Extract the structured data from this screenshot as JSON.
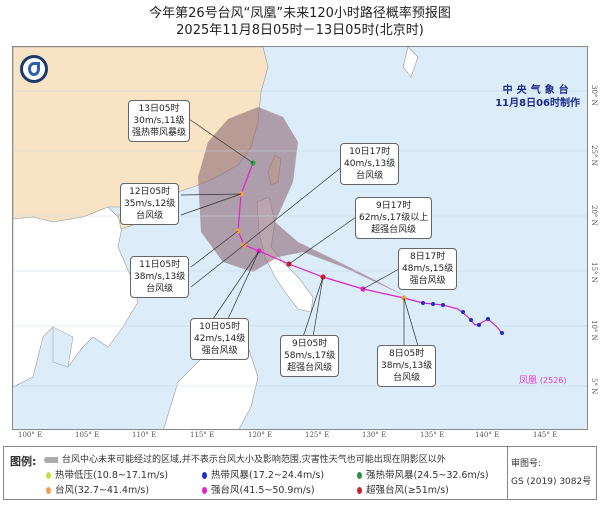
{
  "title": {
    "line1": "今年第26号台风“凤凰”未来120小时路径概率预报图",
    "line2": "2025年11月8日05时－13日05时(北京时)"
  },
  "agency": {
    "name": "中央气象台",
    "issued": "11月8日06时制作"
  },
  "typhoon_label": "凤凰",
  "typhoon_code": "(2526)",
  "lon_ticks": [
    "100° E",
    "105° E",
    "110° E",
    "115° E",
    "120° E",
    "125° E",
    "130° E",
    "135° E",
    "140° E",
    "145° E"
  ],
  "lat_ticks": [
    "30° N",
    "25° N",
    "20° N",
    "15° N",
    "10° N",
    "5° N"
  ],
  "forecast_points": [
    {
      "time": "13日05时",
      "wind": "30m/s,11级",
      "level": "强热带风暴级",
      "color": "#2e9e44"
    },
    {
      "time": "12日05时",
      "wind": "35m/s,12级",
      "level": "台风级",
      "color": "#f0a050"
    },
    {
      "time": "11日05时",
      "wind": "38m/s,13级",
      "level": "台风级",
      "color": "#f0a050"
    },
    {
      "time": "10日17时",
      "wind": "40m/s,13级",
      "level": "台风级",
      "color": "#f0a050"
    },
    {
      "time": "10日05时",
      "wind": "42m/s,14级",
      "level": "强台风级",
      "color": "#e020d0"
    },
    {
      "time": "9日17时",
      "wind": "62m/s,17级以上",
      "level": "超强台风级",
      "color": "#d02030"
    },
    {
      "time": "9日05时",
      "wind": "58m/s,17级",
      "level": "超强台风级",
      "color": "#d02030"
    },
    {
      "time": "8日17时",
      "wind": "48m/s,15级",
      "level": "强台风级",
      "color": "#e020d0"
    },
    {
      "time": "8日05时",
      "wind": "38m/s,13级",
      "level": "台风级",
      "color": "#f0a050"
    }
  ],
  "legend": {
    "heading": "图例:",
    "cone_note": "台风中心未来可能经过的区域,并不表示台风大小及影响范围,灾害性天气也可能出现在阴影区以外",
    "items": [
      {
        "label": "热带低压(10.8~17.1m/s)",
        "color": "#c8e040"
      },
      {
        "label": "热带风暴(17.2~24.4m/s)",
        "color": "#2030c0"
      },
      {
        "label": "强热带风暴(24.5~32.6m/s)",
        "color": "#2e8e44"
      },
      {
        "label": "台风(32.7~41.4m/s)",
        "color": "#f0a050"
      },
      {
        "label": "强台风(41.5~50.9m/s)",
        "color": "#e020d0"
      },
      {
        "label": "超强台风(≥51m/s)",
        "color": "#d02030"
      }
    ],
    "approval_label": "审图号:",
    "approval_no": "GS (2019) 3082号"
  }
}
